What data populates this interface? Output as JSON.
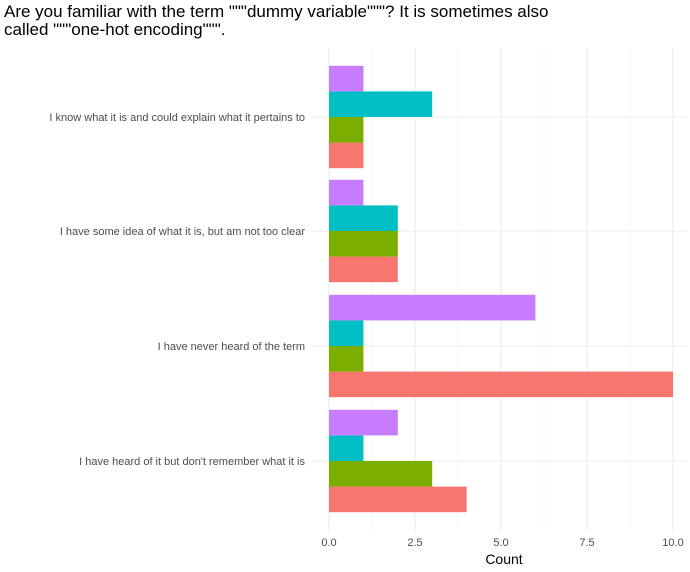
{
  "chart_data": {
    "type": "bar",
    "orientation": "horizontal",
    "title": "Are you familiar with the term \"\"\"dummy variable\"\"\"? It is sometimes also\ncalled \"\"\"one-hot encoding\"\"\".",
    "xlabel": "Count",
    "ylabel": "",
    "xlim": [
      0,
      10.5
    ],
    "x_ticks": [
      "0.0",
      "2.5",
      "5.0",
      "7.5",
      "10.0"
    ],
    "x_tick_values": [
      0,
      2.5,
      5,
      7.5,
      10
    ],
    "grid": true,
    "legend": "none",
    "categories": [
      "I know what it is and could explain what it pertains to",
      "I have some idea of what it is, but am not too clear",
      "I have never heard of the term",
      "I have heard of it but don't remember what it is"
    ],
    "series": [
      {
        "color": "#F8766D",
        "values": [
          1,
          2,
          10,
          4
        ]
      },
      {
        "color": "#7CAE00",
        "values": [
          1,
          2,
          1,
          3
        ]
      },
      {
        "color": "#00BFC4",
        "values": [
          3,
          2,
          1,
          1
        ]
      },
      {
        "color": "#C77CFF",
        "values": [
          1,
          1,
          6,
          2
        ]
      }
    ]
  }
}
